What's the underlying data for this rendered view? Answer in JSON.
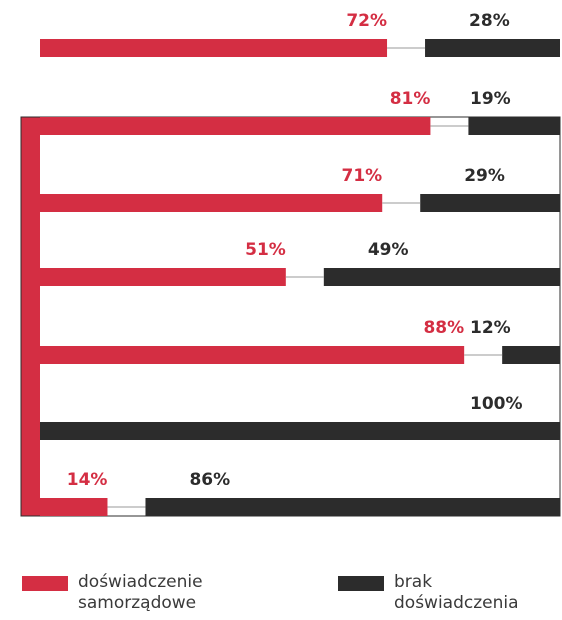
{
  "chart_data": {
    "type": "bar",
    "orientation": "horizontal",
    "stacked": true,
    "xlim": [
      0,
      100
    ],
    "categories": [
      "",
      "",
      "",
      "",
      "",
      "",
      ""
    ],
    "series": [
      {
        "name": "doświadczenie samorządowe",
        "color": "#d42e43",
        "values": [
          72,
          81,
          71,
          51,
          88,
          0,
          14
        ],
        "labels": [
          "72%",
          "81%",
          "71%",
          "51%",
          "88%",
          "",
          "14%"
        ]
      },
      {
        "name": "brak doświadczenia",
        "color": "#2c2c2c",
        "values": [
          28,
          19,
          29,
          49,
          12,
          100,
          86
        ],
        "labels": [
          "28%",
          "19%",
          "29%",
          "49%",
          "12%",
          "100%",
          "86%"
        ]
      }
    ],
    "legend": {
      "placement": "bottom",
      "items": [
        {
          "label_line1": "doświadczenie",
          "label_line2": "samorządowe",
          "color": "#d42e43"
        },
        {
          "label_line1": "brak",
          "label_line2": "doświadczenia",
          "color": "#2c2c2c"
        }
      ]
    }
  }
}
